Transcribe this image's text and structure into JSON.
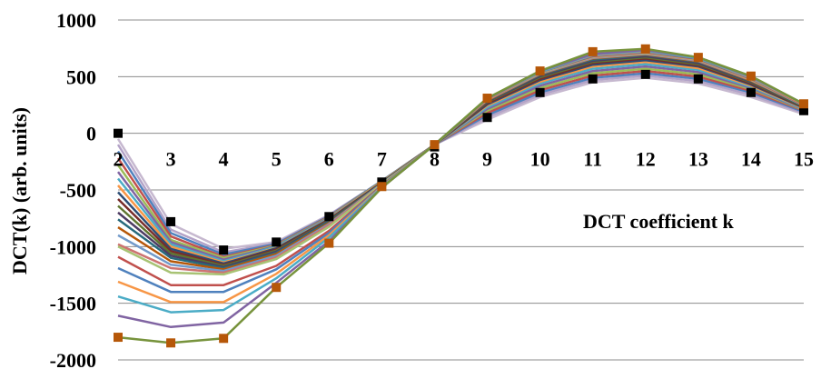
{
  "chart_data": {
    "type": "line",
    "title": "",
    "ylabel": "DCT(k) (arb. units)",
    "xlabel": "",
    "annotation": "DCT coefficient k",
    "x": [
      2,
      3,
      4,
      5,
      6,
      7,
      8,
      9,
      10,
      11,
      12,
      13,
      14,
      15
    ],
    "xticks": [
      "2",
      "3",
      "4",
      "5",
      "6",
      "7",
      "8",
      "9",
      "10",
      "11",
      "12",
      "13",
      "14",
      "15"
    ],
    "ylim": [
      -2000,
      1000
    ],
    "yticks": [
      "1000",
      "500",
      "0",
      "-500",
      "-1000",
      "-1500",
      "-2000"
    ],
    "ytick_values": [
      1000,
      500,
      0,
      -500,
      -1000,
      -1500,
      -2000
    ],
    "grid": true,
    "legend": "none",
    "series": [
      {
        "color": "#c6b8cf",
        "values": [
          -50,
          -800,
          -1020,
          -960,
          -720,
          -420,
          -100,
          120,
          320,
          450,
          490,
          440,
          320,
          170
        ]
      },
      {
        "color": "#b3a2c7",
        "values": [
          -100,
          -850,
          -1050,
          -970,
          -725,
          -420,
          -100,
          140,
          340,
          470,
          510,
          460,
          340,
          180
        ]
      },
      {
        "color": "#4f81bd",
        "values": [
          -160,
          -880,
          -1070,
          -975,
          -730,
          -420,
          -100,
          160,
          360,
          490,
          530,
          480,
          360,
          190
        ]
      },
      {
        "color": "#c0504d",
        "values": [
          -220,
          -910,
          -1090,
          -985,
          -735,
          -425,
          -100,
          180,
          380,
          510,
          550,
          500,
          375,
          200
        ]
      },
      {
        "color": "#9bbb59",
        "values": [
          -280,
          -940,
          -1100,
          -990,
          -740,
          -425,
          -100,
          200,
          400,
          530,
          570,
          520,
          390,
          205
        ]
      },
      {
        "color": "#8064a2",
        "values": [
          -340,
          -960,
          -1115,
          -995,
          -745,
          -430,
          -100,
          215,
          420,
          550,
          590,
          540,
          400,
          210
        ]
      },
      {
        "color": "#4bacc6",
        "values": [
          -400,
          -980,
          -1130,
          -1000,
          -750,
          -430,
          -100,
          230,
          440,
          570,
          610,
          560,
          410,
          215
        ]
      },
      {
        "color": "#f79646",
        "values": [
          -460,
          -1000,
          -1140,
          -1010,
          -755,
          -430,
          -100,
          245,
          455,
          590,
          630,
          575,
          420,
          220
        ]
      },
      {
        "color": "#2c4d75",
        "values": [
          -520,
          -1020,
          -1150,
          -1015,
          -760,
          -435,
          -100,
          255,
          470,
          605,
          645,
          590,
          430,
          225
        ]
      },
      {
        "color": "#772c2a",
        "values": [
          -580,
          -1040,
          -1160,
          -1025,
          -765,
          -435,
          -100,
          265,
          480,
          620,
          660,
          600,
          440,
          230
        ]
      },
      {
        "color": "#5f7530",
        "values": [
          -640,
          -1060,
          -1170,
          -1035,
          -770,
          -440,
          -100,
          275,
          495,
          630,
          670,
          610,
          450,
          235
        ]
      },
      {
        "color": "#4d3b62",
        "values": [
          -700,
          -1080,
          -1180,
          -1045,
          -775,
          -440,
          -100,
          280,
          505,
          640,
          680,
          620,
          455,
          240
        ]
      },
      {
        "color": "#276a7c",
        "values": [
          -760,
          -1100,
          -1190,
          -1055,
          -780,
          -440,
          -100,
          285,
          515,
          650,
          690,
          630,
          460,
          240
        ]
      },
      {
        "color": "#b65708",
        "values": [
          -830,
          -1130,
          -1200,
          -1065,
          -790,
          -445,
          -100,
          290,
          520,
          660,
          695,
          635,
          465,
          245
        ]
      },
      {
        "color": "#729aca",
        "values": [
          -900,
          -1160,
          -1215,
          -1080,
          -800,
          -445,
          -100,
          295,
          525,
          665,
          700,
          640,
          470,
          245
        ]
      },
      {
        "color": "#cd7371",
        "values": [
          -980,
          -1190,
          -1230,
          -1095,
          -810,
          -450,
          -100,
          295,
          530,
          670,
          705,
          645,
          470,
          250
        ]
      },
      {
        "color": "#a8c374",
        "values": [
          -1000,
          -1230,
          -1245,
          -1110,
          -825,
          -450,
          -100,
          300,
          535,
          675,
          710,
          650,
          475,
          250
        ]
      },
      {
        "color": "#c0504d",
        "values": [
          -1090,
          -1340,
          -1340,
          -1170,
          -860,
          -460,
          -100,
          300,
          540,
          680,
          715,
          655,
          480,
          250
        ]
      },
      {
        "color": "#4f81bd",
        "values": [
          -1190,
          -1400,
          -1400,
          -1200,
          -880,
          -465,
          -100,
          300,
          540,
          685,
          720,
          660,
          485,
          255
        ]
      },
      {
        "color": "#f79646",
        "values": [
          -1310,
          -1490,
          -1490,
          -1240,
          -900,
          -470,
          -100,
          300,
          545,
          690,
          725,
          665,
          490,
          255
        ]
      },
      {
        "color": "#4bacc6",
        "values": [
          -1440,
          -1580,
          -1560,
          -1280,
          -920,
          -475,
          -100,
          305,
          545,
          695,
          730,
          665,
          495,
          260
        ]
      },
      {
        "color": "#8064a2",
        "values": [
          -1610,
          -1710,
          -1670,
          -1320,
          -950,
          -480,
          -100,
          305,
          550,
          700,
          735,
          670,
          500,
          260
        ]
      },
      {
        "color": "#77933c",
        "values": [
          -1800,
          -1850,
          -1810,
          -1360,
          -970,
          -480,
          -100,
          310,
          550,
          720,
          745,
          670,
          505,
          260
        ]
      },
      {
        "color": "#000000",
        "marker": "square",
        "markerColor": "#000000",
        "line": false,
        "values": [
          0,
          -780,
          -1030,
          -960,
          -735,
          -430,
          -120,
          140,
          360,
          480,
          520,
          480,
          360,
          200
        ]
      },
      {
        "color": "#b65708",
        "marker": "square",
        "markerColor": "#b65708",
        "line": false,
        "values": [
          -1800,
          -1850,
          -1810,
          -1360,
          -970,
          -470,
          -100,
          310,
          550,
          720,
          745,
          670,
          505,
          260
        ]
      }
    ]
  }
}
